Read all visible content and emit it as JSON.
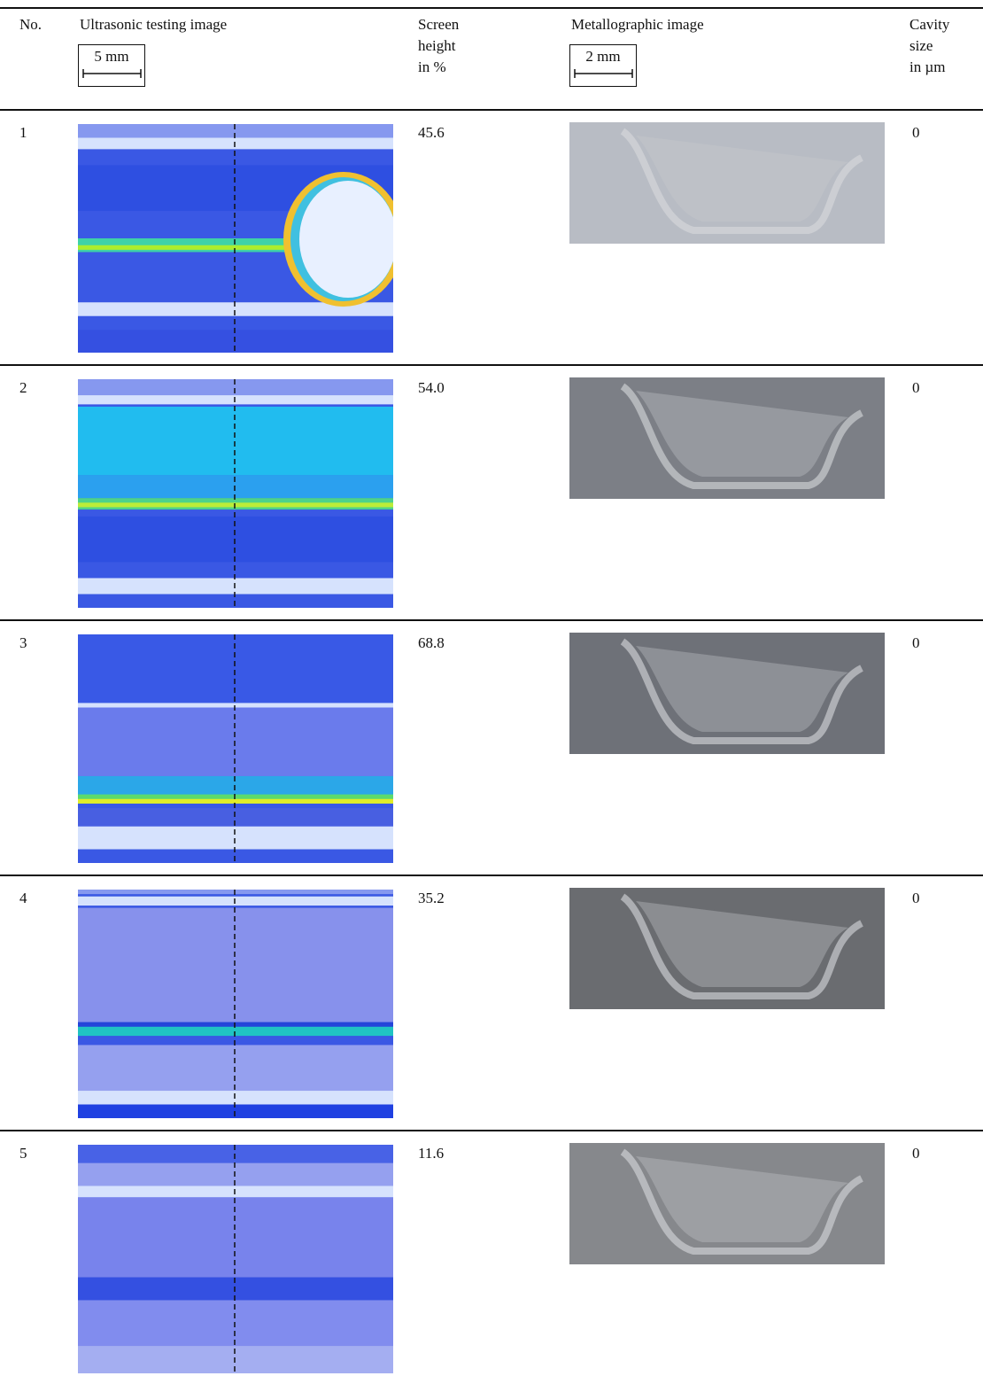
{
  "table": {
    "header": {
      "no": "No.",
      "ultrasonic": "Ultrasonic testing image",
      "ultrasonic_scale": "5 mm",
      "screen_height": [
        "Screen",
        "height",
        "in %"
      ],
      "metallographic": "Metallographic image",
      "metallographic_scale": "2 mm",
      "cavity_size": [
        "Cavity",
        "size",
        "in µm"
      ]
    },
    "rows": [
      {
        "no": "1",
        "screen_height": "45.6",
        "cavity_size": "0"
      },
      {
        "no": "2",
        "screen_height": "54.0",
        "cavity_size": "0"
      },
      {
        "no": "3",
        "screen_height": "68.8",
        "cavity_size": "0"
      },
      {
        "no": "4",
        "screen_height": "35.2",
        "cavity_size": "0"
      },
      {
        "no": "5",
        "screen_height": "11.6",
        "cavity_size": "0"
      }
    ]
  }
}
